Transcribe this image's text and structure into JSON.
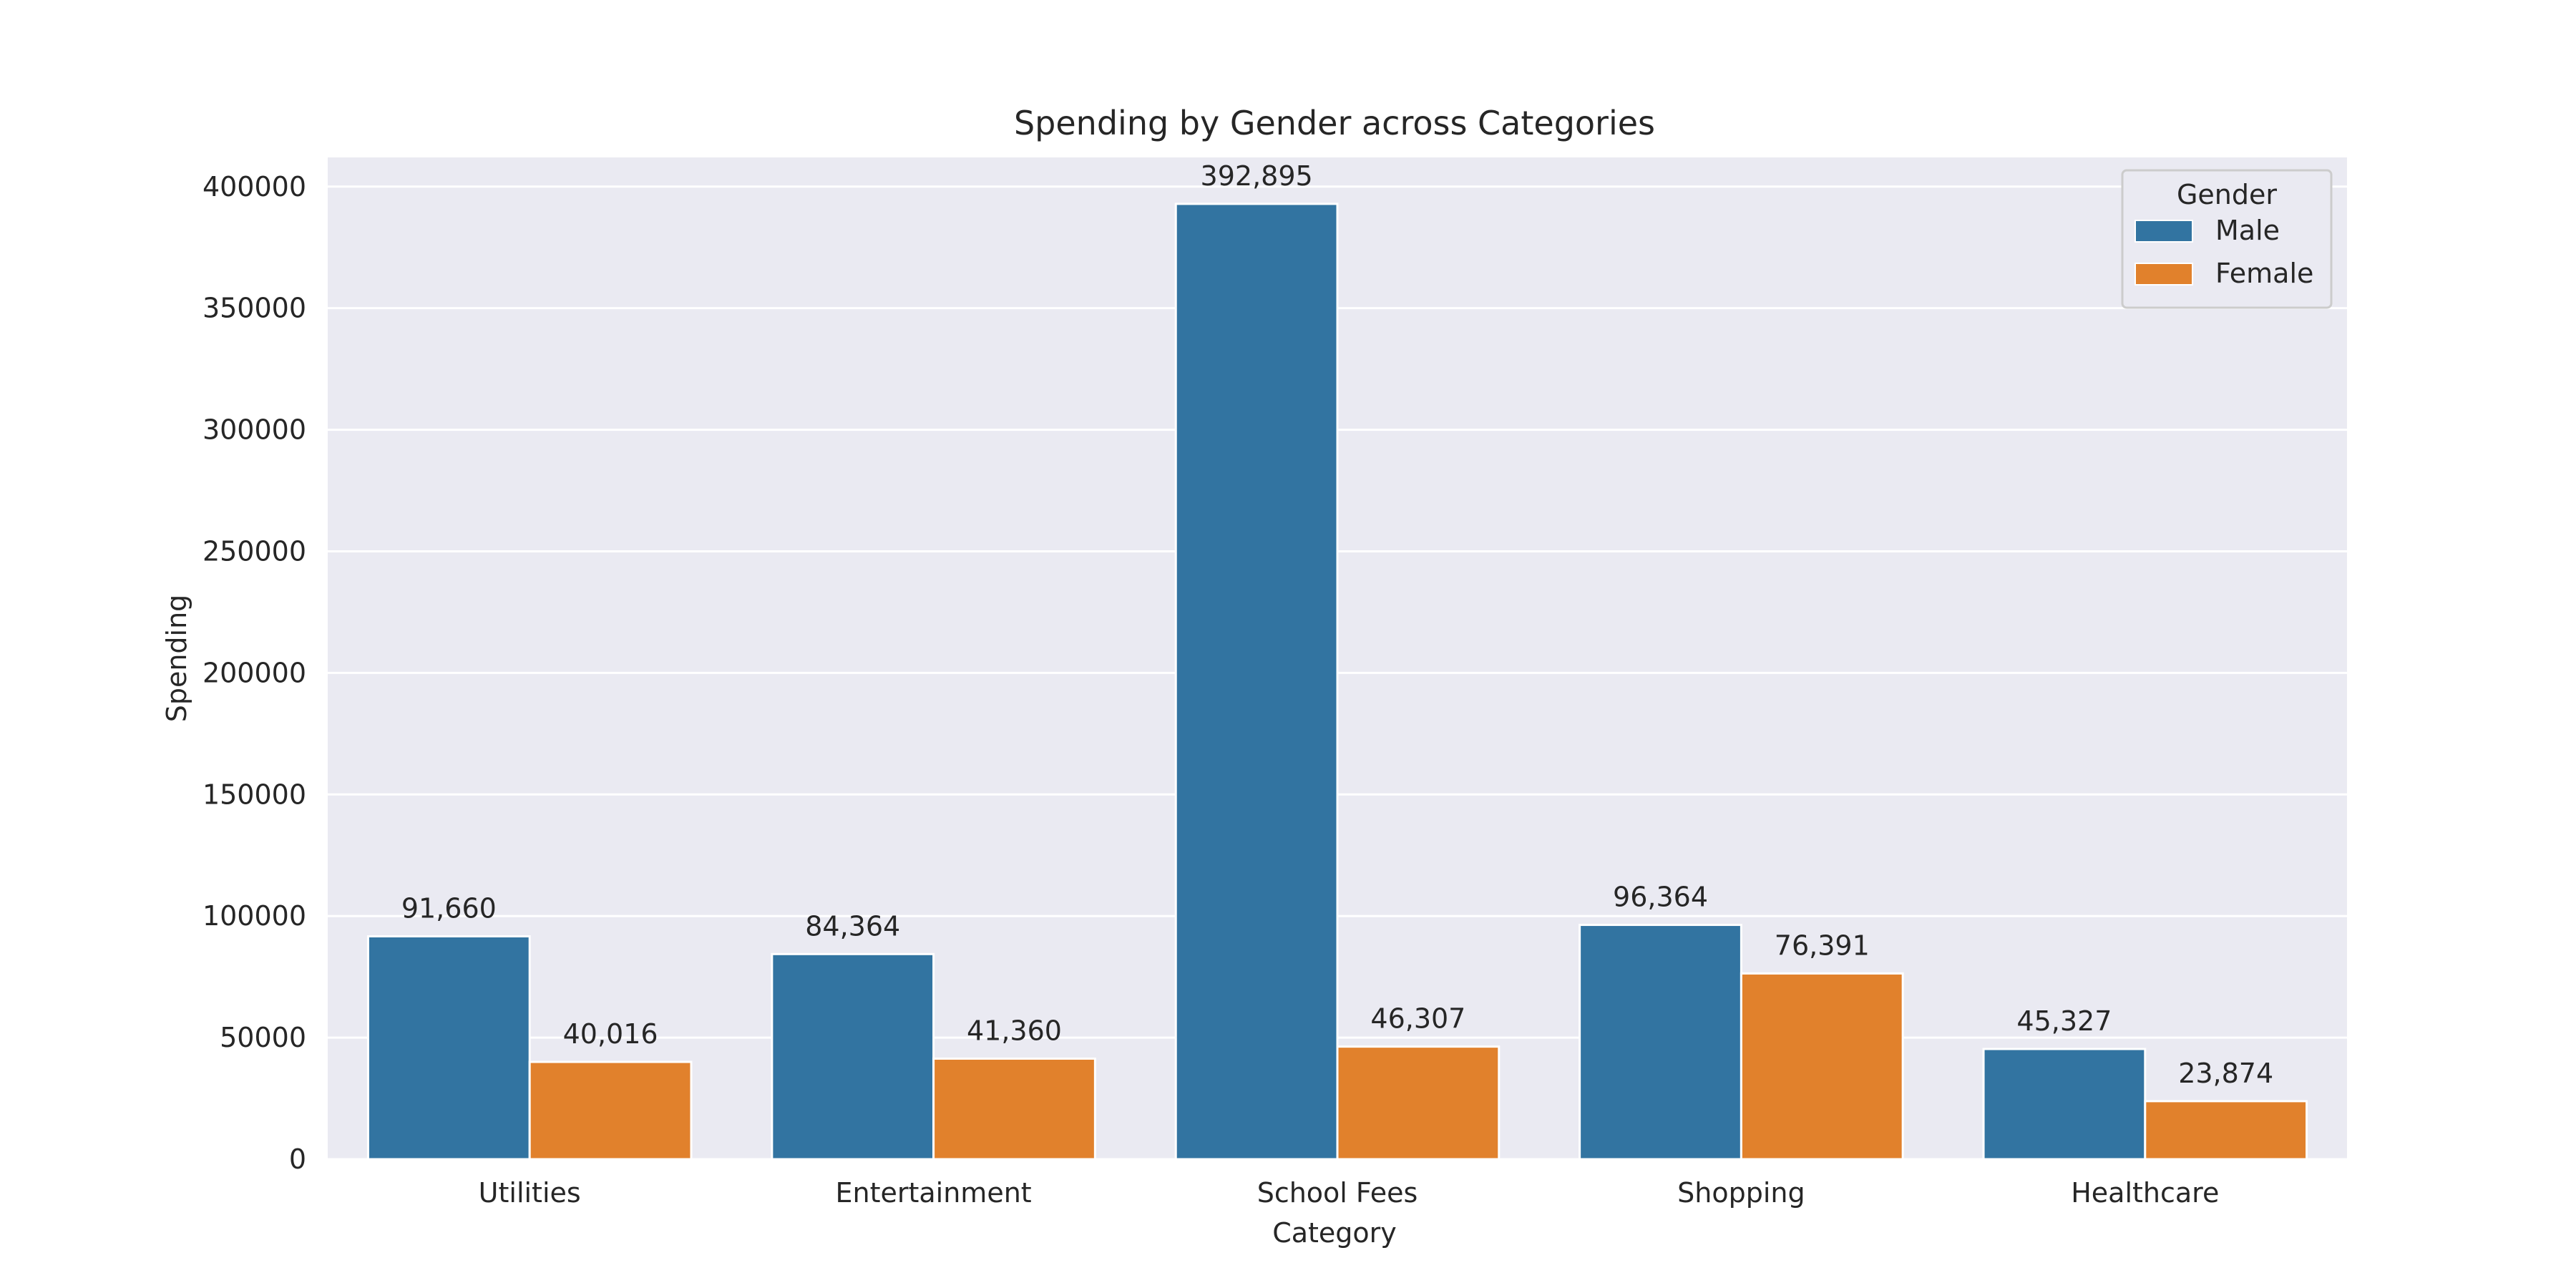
{
  "chart_data": {
    "type": "bar",
    "title": "Spending by Gender across Categories",
    "xlabel": "Category",
    "ylabel": "Spending",
    "categories": [
      "Utilities",
      "Entertainment",
      "School Fees",
      "Shopping",
      "Healthcare"
    ],
    "series": [
      {
        "name": "Male",
        "color": "#3274a1",
        "values": [
          91660,
          84364,
          392895,
          96364,
          45327
        ]
      },
      {
        "name": "Female",
        "color": "#e1812c",
        "values": [
          40016,
          41360,
          46307,
          76391,
          23874
        ]
      }
    ],
    "ylim": [
      0,
      412000
    ],
    "yticks": [
      0,
      50000,
      100000,
      150000,
      200000,
      250000,
      300000,
      350000,
      400000
    ],
    "grid": true,
    "legend": {
      "title": "Gender",
      "placement": "top-right"
    },
    "data_labels": true
  }
}
